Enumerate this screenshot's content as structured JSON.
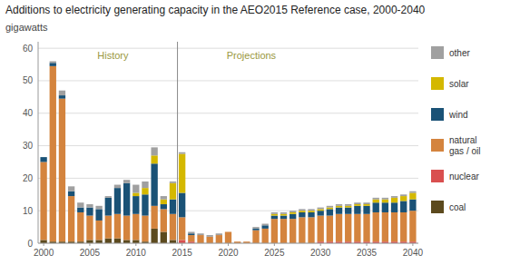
{
  "chart_data": {
    "type": "bar",
    "stacked": true,
    "title": "Additions to electricity generating capacity in the AEO2015  Reference case, 2000-2040",
    "y_label": "gigawatts",
    "x": [
      2000,
      2001,
      2002,
      2003,
      2004,
      2005,
      2006,
      2007,
      2008,
      2009,
      2010,
      2011,
      2012,
      2013,
      2014,
      2015,
      2016,
      2017,
      2018,
      2019,
      2020,
      2021,
      2022,
      2023,
      2024,
      2025,
      2026,
      2027,
      2028,
      2029,
      2030,
      2031,
      2032,
      2033,
      2034,
      2035,
      2036,
      2037,
      2038,
      2039,
      2040
    ],
    "series": [
      {
        "name": "coal",
        "color": "#5c4a1e",
        "values": [
          1.0,
          0.5,
          0.5,
          0.5,
          0.5,
          1.0,
          1.0,
          1.5,
          1.5,
          1.0,
          1.0,
          0.5,
          4.5,
          3.5,
          1.0,
          0.0,
          0.0,
          0.0,
          0.0,
          0.0,
          0.0,
          0.0,
          0.0,
          0.0,
          0.0,
          0.0,
          0.0,
          0.0,
          0.0,
          0.0,
          0.0,
          0.0,
          0.0,
          0.0,
          0.0,
          0.0,
          0.0,
          0.0,
          0.0,
          0.0,
          0.0
        ]
      },
      {
        "name": "nuclear",
        "color": "#d94f4f",
        "values": [
          0.0,
          0.0,
          0.0,
          0.0,
          0.0,
          0.0,
          0.0,
          0.0,
          0.0,
          0.0,
          0.0,
          0.0,
          0.0,
          0.0,
          0.0,
          1.0,
          0.5,
          0.0,
          0.0,
          0.0,
          0.0,
          0.0,
          0.0,
          0.0,
          0.0,
          0.0,
          0.0,
          0.0,
          0.0,
          0.0,
          0.5,
          0.5,
          0.5,
          0.5,
          0.5,
          0.5,
          0.5,
          0.5,
          0.5,
          0.5,
          0.5
        ]
      },
      {
        "name": "natural\ngas / oil",
        "color": "#d4843e",
        "values": [
          24.0,
          54.0,
          44.0,
          14.0,
          9.0,
          7.5,
          6.0,
          7.0,
          7.5,
          7.5,
          8.0,
          8.0,
          7.0,
          7.0,
          8.0,
          7.0,
          2.0,
          2.5,
          2.0,
          2.5,
          3.5,
          0.5,
          0.5,
          4.0,
          4.5,
          7.5,
          7.5,
          7.5,
          8.0,
          8.0,
          8.0,
          8.0,
          8.5,
          8.5,
          8.5,
          8.5,
          9.0,
          9.0,
          9.0,
          9.0,
          9.5
        ]
      },
      {
        "name": "wind",
        "color": "#1a5276",
        "values": [
          1.5,
          1.0,
          1.0,
          1.5,
          1.5,
          2.5,
          3.5,
          5.5,
          8.0,
          10.0,
          5.5,
          6.5,
          13.0,
          1.5,
          4.5,
          7.5,
          0.5,
          0.0,
          0.0,
          0.0,
          0.0,
          0.0,
          0.0,
          0.5,
          1.0,
          1.0,
          1.0,
          1.5,
          1.5,
          1.5,
          1.5,
          2.0,
          2.0,
          2.0,
          2.5,
          2.5,
          3.0,
          3.0,
          3.0,
          3.5,
          3.5
        ]
      },
      {
        "name": "solar",
        "color": "#d4b800",
        "values": [
          0.0,
          0.0,
          0.0,
          0.0,
          0.0,
          0.0,
          0.0,
          0.0,
          0.0,
          0.0,
          1.0,
          2.0,
          2.5,
          1.5,
          5.0,
          12.0,
          0.0,
          0.0,
          0.0,
          0.0,
          0.0,
          0.0,
          0.0,
          0.0,
          0.0,
          0.5,
          0.5,
          0.5,
          0.5,
          0.5,
          0.5,
          0.5,
          0.5,
          0.5,
          0.5,
          0.5,
          1.0,
          1.0,
          1.5,
          1.5,
          2.0
        ]
      },
      {
        "name": "other",
        "color": "#a0a0a0",
        "values": [
          0.0,
          0.5,
          1.5,
          1.5,
          1.5,
          1.0,
          1.0,
          0.5,
          1.0,
          1.0,
          2.5,
          2.0,
          2.5,
          1.0,
          0.5,
          0.5,
          0.5,
          0.5,
          0.5,
          0.5,
          0.0,
          0.0,
          0.0,
          0.5,
          0.5,
          0.5,
          0.5,
          0.5,
          0.5,
          0.5,
          0.5,
          0.5,
          0.5,
          0.5,
          0.5,
          0.5,
          0.5,
          0.5,
          0.5,
          0.5,
          0.5
        ]
      }
    ],
    "annotations": [
      {
        "text": "History",
        "x": 2007.5,
        "y": 59.5
      },
      {
        "text": "Projections",
        "x": 2022.5,
        "y": 59.5
      },
      {
        "type": "vline",
        "x": 2014.5
      }
    ],
    "xlim": [
      1999.4,
      2040.6
    ],
    "xticks": [
      2000,
      2005,
      2010,
      2015,
      2020,
      2025,
      2030,
      2035,
      2040
    ],
    "ylim": [
      0,
      62
    ],
    "yticks": [
      0,
      10,
      20,
      30,
      40,
      50,
      60
    ],
    "grid": true,
    "legend": "right"
  }
}
